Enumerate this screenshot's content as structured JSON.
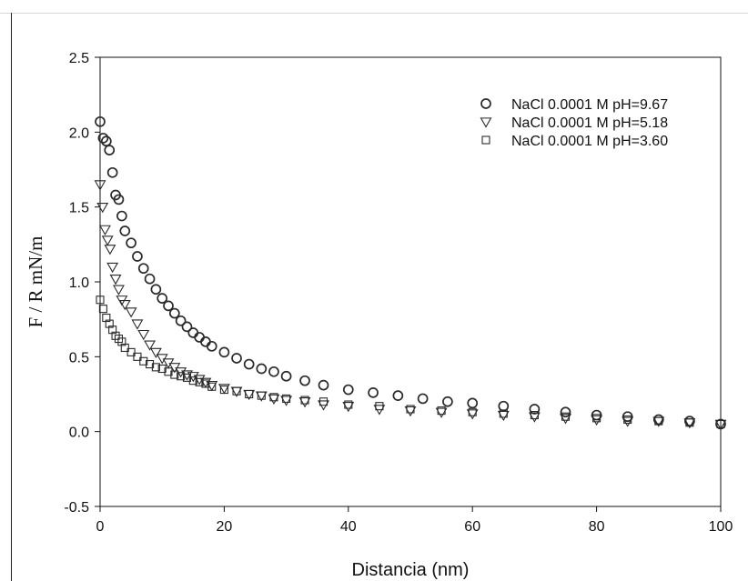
{
  "chart_data": {
    "type": "scatter",
    "title": "",
    "xlabel": "Distancia (nm)",
    "ylabel": "F / R  mN/m",
    "xlim": [
      0,
      100
    ],
    "ylim": [
      -0.5,
      2.5
    ],
    "xticks": [
      0,
      20,
      40,
      60,
      80,
      100
    ],
    "xtick_labels": [
      "0",
      "20",
      "40",
      "60",
      "80",
      "100"
    ],
    "yticks": [
      -0.5,
      0,
      0.5,
      1,
      1.5,
      2,
      2.5
    ],
    "ytick_labels": [
      "-0.5",
      "0.0",
      "0.5",
      "1.0",
      "1.5",
      "2.0",
      "2.5"
    ],
    "grid": false,
    "legend_position": "top-right",
    "series": [
      {
        "name": "NaCl 0.0001 M pH=9.67",
        "marker": "circle",
        "x": [
          0.0,
          0.5,
          1.0,
          1.5,
          2.0,
          2.5,
          3.0,
          3.5,
          4.0,
          5.0,
          6.0,
          7.0,
          8.0,
          9.0,
          10.0,
          11.0,
          12.0,
          13.0,
          14.0,
          15.0,
          16.0,
          17.0,
          18.0,
          20.0,
          22.0,
          24.0,
          26.0,
          28.0,
          30.0,
          33.0,
          36.0,
          40.0,
          44.0,
          48.0,
          52.0,
          56.0,
          60.0,
          65.0,
          70.0,
          75.0,
          80.0,
          85.0,
          90.0,
          95.0,
          100.0
        ],
        "values": [
          2.07,
          1.96,
          1.94,
          1.88,
          1.73,
          1.58,
          1.55,
          1.44,
          1.34,
          1.26,
          1.17,
          1.09,
          1.02,
          0.95,
          0.89,
          0.84,
          0.79,
          0.74,
          0.7,
          0.66,
          0.63,
          0.6,
          0.57,
          0.53,
          0.49,
          0.45,
          0.42,
          0.4,
          0.37,
          0.34,
          0.31,
          0.28,
          0.26,
          0.24,
          0.22,
          0.2,
          0.19,
          0.17,
          0.15,
          0.13,
          0.11,
          0.1,
          0.08,
          0.07,
          0.05
        ]
      },
      {
        "name": "NaCl 0.0001 M pH=5.18",
        "marker": "triangle-down",
        "x": [
          0.0,
          0.4,
          0.8,
          1.2,
          1.6,
          2.0,
          2.5,
          3.0,
          3.5,
          4.0,
          5.0,
          6.0,
          7.0,
          8.0,
          9.0,
          10.0,
          11.0,
          12.0,
          13.0,
          14.0,
          15.0,
          16.0,
          17.0,
          18.0,
          20.0,
          22.0,
          24.0,
          26.0,
          28.0,
          30.0,
          33.0,
          36.0,
          40.0,
          45.0,
          50.0,
          55.0,
          60.0,
          65.0,
          70.0,
          75.0,
          80.0,
          85.0,
          90.0,
          95.0,
          100.0
        ],
        "values": [
          1.65,
          1.5,
          1.35,
          1.28,
          1.22,
          1.1,
          1.02,
          0.95,
          0.88,
          0.85,
          0.8,
          0.72,
          0.65,
          0.58,
          0.53,
          0.49,
          0.46,
          0.43,
          0.4,
          0.38,
          0.37,
          0.35,
          0.33,
          0.31,
          0.29,
          0.27,
          0.25,
          0.24,
          0.22,
          0.21,
          0.2,
          0.18,
          0.17,
          0.15,
          0.14,
          0.13,
          0.12,
          0.11,
          0.1,
          0.09,
          0.08,
          0.07,
          0.07,
          0.06,
          0.05
        ]
      },
      {
        "name": "NaCl 0.0001 M pH=3.60",
        "marker": "square",
        "x": [
          0.0,
          0.5,
          1.0,
          1.5,
          2.0,
          2.5,
          3.0,
          3.5,
          4.0,
          5.0,
          6.0,
          7.0,
          8.0,
          9.0,
          10.0,
          11.0,
          12.0,
          13.0,
          14.0,
          15.0,
          16.0,
          17.0,
          18.0,
          20.0,
          22.0,
          24.0,
          26.0,
          28.0,
          30.0,
          33.0,
          36.0,
          40.0,
          45.0,
          50.0,
          55.0,
          60.0,
          65.0,
          70.0,
          75.0,
          80.0,
          85.0,
          90.0,
          95.0,
          100.0
        ],
        "values": [
          0.88,
          0.82,
          0.76,
          0.72,
          0.68,
          0.64,
          0.62,
          0.6,
          0.56,
          0.53,
          0.5,
          0.47,
          0.45,
          0.43,
          0.42,
          0.4,
          0.38,
          0.37,
          0.36,
          0.34,
          0.33,
          0.32,
          0.3,
          0.28,
          0.27,
          0.25,
          0.24,
          0.23,
          0.22,
          0.21,
          0.2,
          0.18,
          0.17,
          0.15,
          0.14,
          0.13,
          0.12,
          0.11,
          0.1,
          0.09,
          0.08,
          0.07,
          0.06,
          0.05
        ]
      }
    ]
  },
  "colors": {
    "marker_stroke": "#2a2a2a",
    "axis": "#111111"
  }
}
